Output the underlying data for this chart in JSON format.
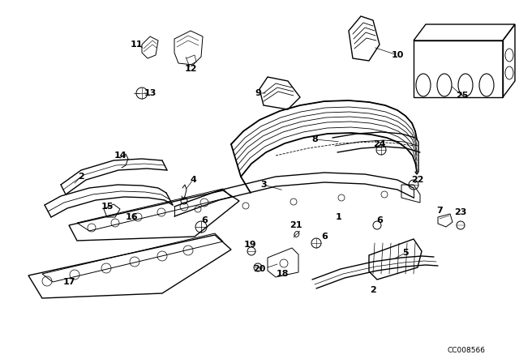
{
  "bg_color": "#ffffff",
  "fg_color": "#000000",
  "watermark": "CC008566",
  "figsize": [
    6.4,
    4.48
  ],
  "dpi": 100
}
